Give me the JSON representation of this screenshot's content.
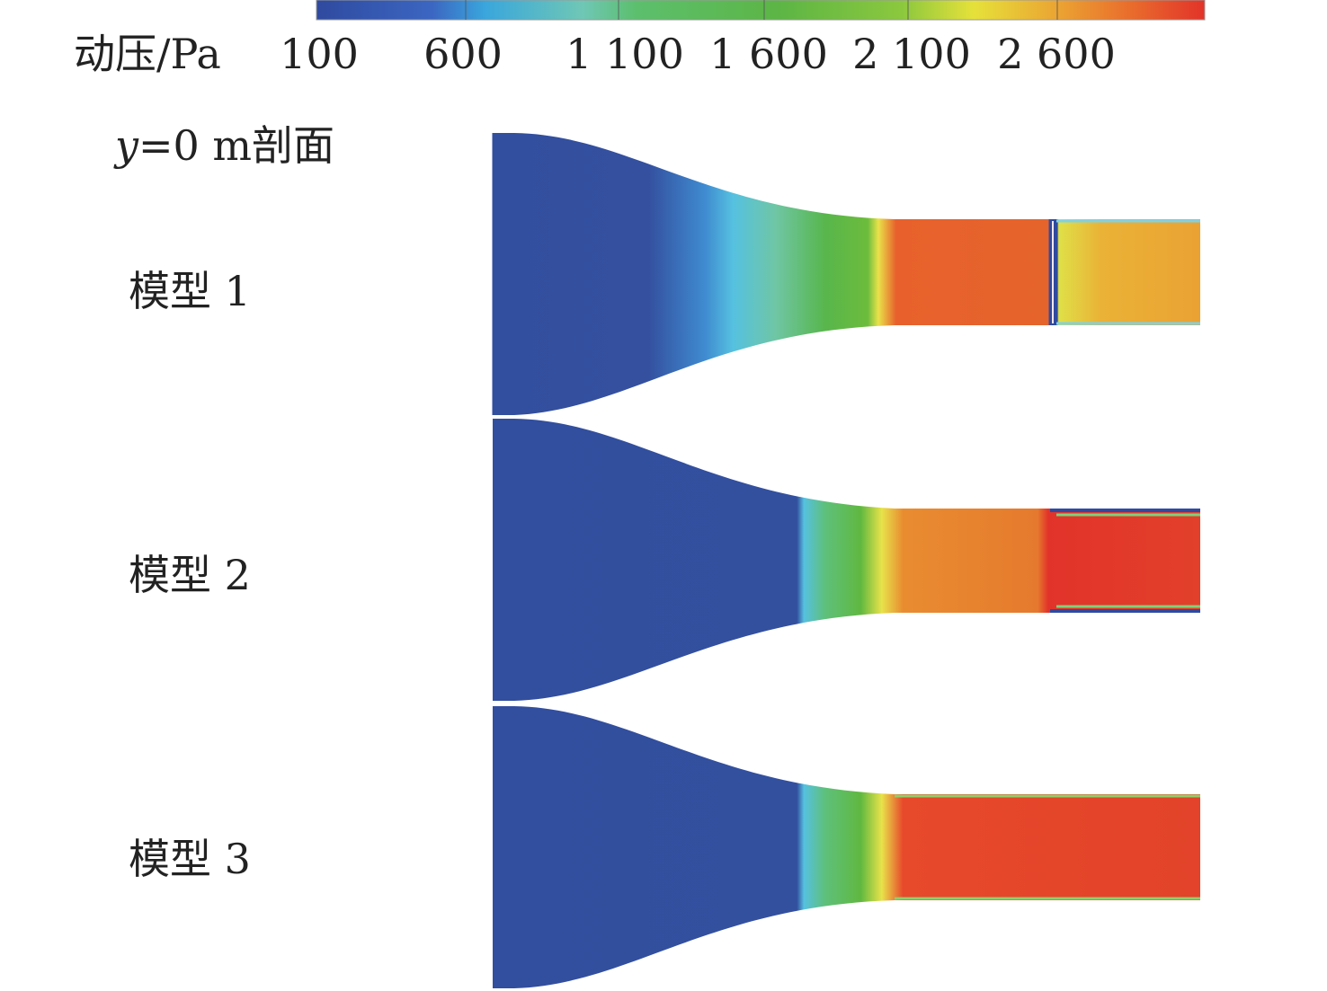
{
  "legend": {
    "label": "动压/Pa",
    "ticks": [
      "100",
      "600",
      "1 100",
      "1 600",
      "2 100",
      "2 600"
    ],
    "colors": [
      "#2f4a9f",
      "#3aa6dc",
      "#5cbf8a",
      "#5cb545",
      "#8cc83e",
      "#e6e13a",
      "#e98a2e",
      "#e2332a"
    ]
  },
  "section_title": {
    "var": "y",
    "rest": "=0 m剖面"
  },
  "models": [
    {
      "label": "模型 1"
    },
    {
      "label": "模型 2"
    },
    {
      "label": "模型 3"
    }
  ]
}
